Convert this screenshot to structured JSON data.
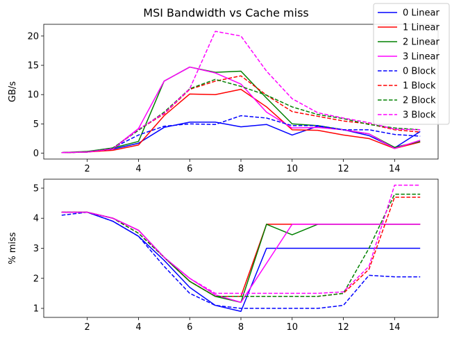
{
  "figure_title": "MSI Bandwidth vs Cache miss",
  "chart_data": [
    {
      "type": "line",
      "ylabel": "GB/s",
      "xlim": [
        0.3,
        15.7
      ],
      "ylim": [
        -1.0,
        22.0
      ],
      "xticks": [
        2,
        4,
        6,
        8,
        10,
        12,
        14
      ],
      "yticks": [
        0,
        5,
        10,
        15,
        20
      ],
      "legend": {
        "placement": "top-right"
      },
      "x": [
        1,
        2,
        3,
        4,
        5,
        6,
        7,
        8,
        9,
        10,
        11,
        12,
        13,
        14,
        15
      ],
      "series": [
        {
          "name": "0 Linear",
          "color": "#0000ff",
          "dash": "solid",
          "values": [
            0.1,
            0.2,
            0.7,
            1.7,
            4.4,
            5.3,
            5.3,
            4.5,
            4.9,
            3.1,
            4.6,
            4.0,
            3.0,
            0.9,
            3.7
          ]
        },
        {
          "name": "1 Linear",
          "color": "#ff0000",
          "dash": "solid",
          "values": [
            0.1,
            0.2,
            0.5,
            1.4,
            6.4,
            10.1,
            10.0,
            10.9,
            7.9,
            4.0,
            3.9,
            3.1,
            2.5,
            0.8,
            1.9
          ]
        },
        {
          "name": "2 Linear",
          "color": "#008000",
          "dash": "solid",
          "values": [
            0.1,
            0.3,
            0.9,
            2.0,
            12.3,
            14.7,
            13.8,
            14.0,
            9.4,
            5.0,
            4.7,
            4.0,
            3.3,
            1.0,
            2.0
          ]
        },
        {
          "name": "3 Linear",
          "color": "#ff00ff",
          "dash": "solid",
          "values": [
            0.1,
            0.2,
            0.8,
            4.2,
            12.3,
            14.7,
            13.7,
            11.8,
            7.0,
            4.3,
            4.4,
            4.0,
            3.3,
            0.8,
            2.2
          ]
        },
        {
          "name": "0 Block",
          "color": "#0000ff",
          "dash": "dashed",
          "values": [
            0.1,
            0.2,
            0.9,
            3.1,
            4.6,
            5.0,
            4.9,
            6.4,
            6.0,
            4.7,
            4.7,
            4.0,
            4.0,
            3.2,
            2.9
          ]
        },
        {
          "name": "1 Block",
          "color": "#ff0000",
          "dash": "dashed",
          "values": [
            0.1,
            0.2,
            0.8,
            4.0,
            6.7,
            10.9,
            12.3,
            13.2,
            9.9,
            7.1,
            6.3,
            5.5,
            5.0,
            4.0,
            3.6
          ]
        },
        {
          "name": "2 Block",
          "color": "#008000",
          "dash": "dashed",
          "values": [
            0.1,
            0.2,
            0.9,
            3.9,
            7.0,
            11.0,
            12.6,
            11.4,
            9.9,
            7.9,
            6.6,
            5.9,
            4.9,
            4.3,
            4.0
          ]
        },
        {
          "name": "3 Block",
          "color": "#ff00ff",
          "dash": "dashed",
          "values": [
            0.1,
            0.2,
            0.7,
            4.1,
            6.8,
            11.0,
            20.8,
            20.0,
            14.0,
            9.3,
            6.9,
            6.0,
            5.2,
            4.1,
            4.0
          ]
        }
      ]
    },
    {
      "type": "line",
      "ylabel": "% miss",
      "xlim": [
        0.3,
        15.7
      ],
      "ylim": [
        0.7,
        5.3
      ],
      "xticks": [
        2,
        4,
        6,
        8,
        10,
        12,
        14
      ],
      "yticks": [
        1,
        2,
        3,
        4,
        5
      ],
      "x": [
        1,
        2,
        3,
        4,
        5,
        6,
        7,
        8,
        9,
        10,
        11,
        12,
        13,
        14,
        15
      ],
      "series": [
        {
          "color": "#0000ff",
          "dash": "solid",
          "values": [
            4.2,
            4.2,
            3.9,
            3.4,
            2.6,
            1.7,
            1.1,
            0.9,
            3.0,
            3.0,
            3.0,
            3.0,
            3.0,
            3.0,
            3.0
          ]
        },
        {
          "color": "#ff0000",
          "dash": "solid",
          "values": [
            4.2,
            4.2,
            4.0,
            3.6,
            2.7,
            1.9,
            1.4,
            1.4,
            3.8,
            3.8,
            3.8,
            3.8,
            3.8,
            3.8,
            3.8
          ]
        },
        {
          "color": "#008000",
          "dash": "solid",
          "values": [
            4.2,
            4.2,
            4.0,
            3.6,
            2.7,
            1.9,
            1.4,
            1.2,
            3.8,
            3.45,
            3.8,
            3.8,
            3.8,
            3.8,
            3.8
          ]
        },
        {
          "color": "#ff00ff",
          "dash": "solid",
          "values": [
            4.2,
            4.2,
            4.0,
            3.6,
            2.7,
            2.0,
            1.45,
            1.2,
            2.5,
            3.8,
            3.8,
            3.8,
            3.8,
            3.8,
            3.8
          ]
        },
        {
          "color": "#0000ff",
          "dash": "dashed",
          "values": [
            4.1,
            4.2,
            3.9,
            3.4,
            2.4,
            1.5,
            1.1,
            1.0,
            1.0,
            1.0,
            1.0,
            1.1,
            2.1,
            2.05,
            2.05
          ]
        },
        {
          "color": "#ff0000",
          "dash": "dashed",
          "values": [
            4.2,
            4.2,
            4.0,
            3.5,
            2.7,
            1.9,
            1.4,
            1.4,
            1.4,
            1.4,
            1.4,
            1.5,
            2.3,
            4.7,
            4.7
          ]
        },
        {
          "color": "#008000",
          "dash": "dashed",
          "values": [
            4.2,
            4.2,
            4.0,
            3.5,
            2.7,
            1.9,
            1.4,
            1.4,
            1.4,
            1.4,
            1.4,
            1.5,
            3.0,
            4.8,
            4.8
          ]
        },
        {
          "color": "#ff00ff",
          "dash": "dashed",
          "values": [
            4.2,
            4.2,
            4.0,
            3.6,
            2.7,
            2.0,
            1.5,
            1.5,
            1.5,
            1.5,
            1.5,
            1.55,
            2.4,
            5.1,
            5.1
          ]
        }
      ]
    }
  ]
}
